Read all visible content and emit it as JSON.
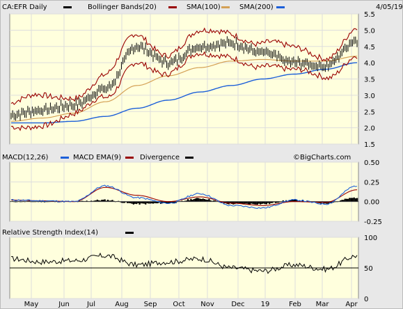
{
  "header": {
    "symbol_label": "CA:EFR Daily",
    "bb_label": "Bollinger Bands(20)",
    "sma100_label": "SMA(100)",
    "sma200_label": "SMA(200)",
    "date": "4/05/19"
  },
  "macd_panel": {
    "title": "MACD(12,26)",
    "ema_label": "MACD EMA(9)",
    "div_label": "Divergence",
    "watermark": "©BigCharts.com"
  },
  "rsi_panel": {
    "title": "Relative Strength Index(14)"
  },
  "colors": {
    "plot_bg": "#ffffdd",
    "price": "#000000",
    "bollinger": "#990000",
    "sma100": "#d4a055",
    "sma200": "#1c5fd9",
    "macd": "#1c5fd9",
    "macd_ema": "#990000",
    "divergence": "#000000",
    "rsi": "#000000"
  },
  "chart_data": [
    {
      "type": "line",
      "x": [
        "May",
        "Jun",
        "Jul",
        "Aug",
        "Sep",
        "Oct",
        "Nov",
        "Dec",
        "19",
        "Feb",
        "Mar",
        "Apr"
      ],
      "ylim": [
        1.5,
        5.5
      ],
      "yticks": [
        1.5,
        2.0,
        2.5,
        3.0,
        3.5,
        4.0,
        4.5,
        5.0,
        5.5
      ],
      "grid": true,
      "series": [
        {
          "name": "CA:EFR Daily",
          "values": [
            2.4,
            2.55,
            2.7,
            3.2,
            4.5,
            4.0,
            4.5,
            4.6,
            4.3,
            4.0,
            3.9,
            4.7
          ]
        },
        {
          "name": "SMA(100)",
          "values": [
            2.2,
            2.3,
            2.45,
            2.8,
            3.3,
            3.6,
            3.85,
            4.05,
            4.1,
            4.05,
            4.05,
            4.2
          ]
        },
        {
          "name": "SMA(200)",
          "values": [
            2.15,
            2.15,
            2.2,
            2.35,
            2.6,
            2.85,
            3.1,
            3.3,
            3.5,
            3.65,
            3.8,
            4.0
          ]
        }
      ]
    },
    {
      "type": "line",
      "x": [
        "May",
        "Jun",
        "Jul",
        "Aug",
        "Sep",
        "Oct",
        "Nov",
        "Dec",
        "19",
        "Feb",
        "Mar",
        "Apr"
      ],
      "ylim": [
        -0.25,
        0.5
      ],
      "yticks": [
        -0.25,
        0.0,
        0.25,
        0.5
      ],
      "series": [
        {
          "name": "MACD(12,26)",
          "values": [
            0.02,
            0.01,
            0.0,
            0.2,
            0.05,
            -0.02,
            0.1,
            -0.05,
            -0.08,
            0.02,
            -0.03,
            0.2
          ]
        },
        {
          "name": "MACD EMA(9)",
          "values": [
            0.02,
            0.01,
            0.0,
            0.18,
            0.08,
            0.0,
            0.06,
            -0.02,
            -0.05,
            0.0,
            -0.01,
            0.15
          ]
        }
      ]
    },
    {
      "type": "line",
      "x": [
        "May",
        "Jun",
        "Jul",
        "Aug",
        "Sep",
        "Oct",
        "Nov",
        "Dec",
        "19",
        "Feb",
        "Mar",
        "Apr"
      ],
      "ylim": [
        0,
        100
      ],
      "yticks": [
        0,
        50,
        100
      ],
      "series": [
        {
          "name": "Relative Strength Index(14)",
          "values": [
            65,
            60,
            62,
            70,
            55,
            60,
            65,
            50,
            45,
            55,
            48,
            70
          ]
        }
      ]
    }
  ]
}
